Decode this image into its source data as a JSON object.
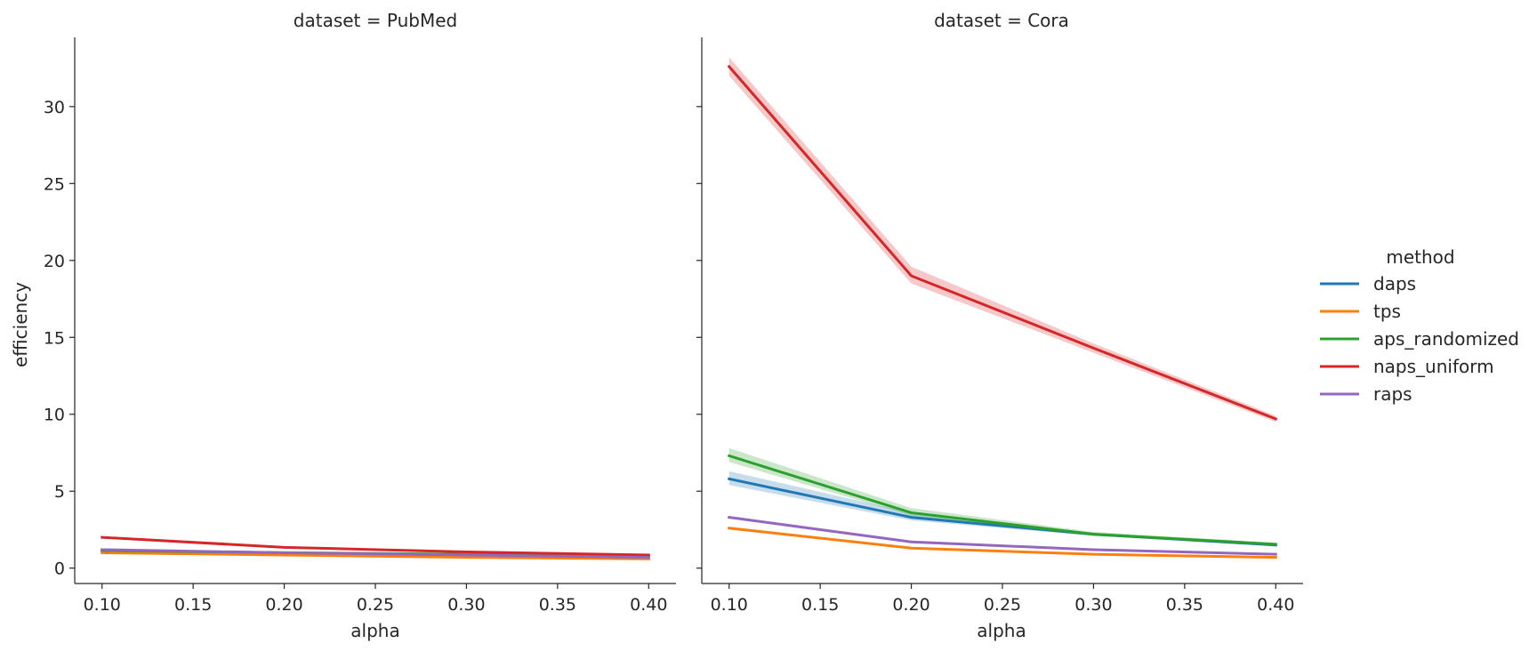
{
  "chart_data": {
    "type": "line",
    "xlabel": "alpha",
    "ylabel": "efficiency",
    "xlim": [
      0.085,
      0.415
    ],
    "ylim": [
      -1.0,
      34.5
    ],
    "xticks": [
      "0.10",
      "0.15",
      "0.20",
      "0.25",
      "0.30",
      "0.35",
      "0.40"
    ],
    "yticks": [
      "0",
      "5",
      "10",
      "15",
      "20",
      "25",
      "30"
    ],
    "sharey": true,
    "legend": {
      "title": "method",
      "placement": "right",
      "entries": [
        "daps",
        "tps",
        "aps_randomized",
        "naps_uniform",
        "raps"
      ]
    },
    "colors": {
      "daps": "#1f77b4",
      "tps": "#ff7f0e",
      "aps_randomized": "#2ca02c",
      "naps_uniform": "#d62728",
      "raps": "#9467bd"
    },
    "panels": [
      {
        "title": "dataset = PubMed",
        "x": [
          0.1,
          0.2,
          0.3,
          0.4
        ],
        "series": [
          {
            "name": "daps",
            "values": [
              1.1,
              0.95,
              0.85,
              0.75
            ],
            "ci": [
              [
                1.05,
                1.15
              ],
              [
                0.9,
                1.0
              ],
              [
                0.8,
                0.9
              ],
              [
                0.7,
                0.8
              ]
            ]
          },
          {
            "name": "tps",
            "values": [
              1.0,
              0.85,
              0.7,
              0.6
            ],
            "ci": [
              [
                0.97,
                1.03
              ],
              [
                0.82,
                0.88
              ],
              [
                0.67,
                0.73
              ],
              [
                0.57,
                0.63
              ]
            ]
          },
          {
            "name": "aps_randomized",
            "values": [
              1.15,
              1.0,
              0.9,
              0.8
            ],
            "ci": [
              [
                1.1,
                1.2
              ],
              [
                0.95,
                1.05
              ],
              [
                0.85,
                0.95
              ],
              [
                0.75,
                0.85
              ]
            ]
          },
          {
            "name": "naps_uniform",
            "values": [
              2.0,
              1.35,
              1.05,
              0.85
            ],
            "ci": [
              [
                1.95,
                2.05
              ],
              [
                1.3,
                1.4
              ],
              [
                1.0,
                1.1
              ],
              [
                0.8,
                0.9
              ]
            ]
          },
          {
            "name": "raps",
            "values": [
              1.2,
              1.0,
              0.85,
              0.7
            ],
            "ci": [
              [
                1.15,
                1.25
              ],
              [
                0.95,
                1.05
              ],
              [
                0.8,
                0.9
              ],
              [
                0.65,
                0.75
              ]
            ]
          }
        ]
      },
      {
        "title": "dataset = Cora",
        "x": [
          0.1,
          0.2,
          0.3,
          0.4
        ],
        "series": [
          {
            "name": "daps",
            "values": [
              5.8,
              3.3,
              2.2,
              1.5
            ],
            "ci": [
              [
                5.4,
                6.3
              ],
              [
                3.1,
                3.6
              ],
              [
                2.1,
                2.3
              ],
              [
                1.45,
                1.6
              ]
            ]
          },
          {
            "name": "tps",
            "values": [
              2.6,
              1.3,
              0.9,
              0.7
            ],
            "ci": [
              [
                2.55,
                2.7
              ],
              [
                1.25,
                1.35
              ],
              [
                0.85,
                0.95
              ],
              [
                0.65,
                0.75
              ]
            ]
          },
          {
            "name": "aps_randomized",
            "values": [
              7.3,
              3.6,
              2.2,
              1.55
            ],
            "ci": [
              [
                6.9,
                7.8
              ],
              [
                3.4,
                3.9
              ],
              [
                2.1,
                2.35
              ],
              [
                1.5,
                1.65
              ]
            ]
          },
          {
            "name": "naps_uniform",
            "values": [
              32.6,
              19.0,
              14.3,
              9.7
            ],
            "ci": [
              [
                32.0,
                33.2
              ],
              [
                18.5,
                19.6
              ],
              [
                14.0,
                14.6
              ],
              [
                9.5,
                9.9
              ]
            ]
          },
          {
            "name": "raps",
            "values": [
              3.3,
              1.7,
              1.2,
              0.9
            ],
            "ci": [
              [
                3.25,
                3.4
              ],
              [
                1.65,
                1.8
              ],
              [
                1.15,
                1.25
              ],
              [
                0.85,
                0.95
              ]
            ]
          }
        ]
      }
    ]
  }
}
